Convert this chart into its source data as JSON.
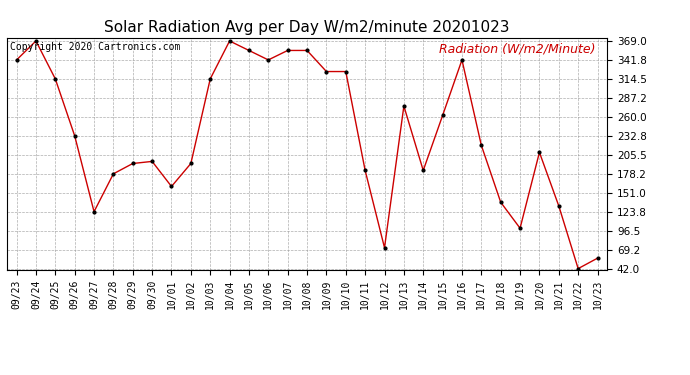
{
  "title": "Solar Radiation Avg per Day W/m2/minute 20201023",
  "copyright_text": "Copyright 2020 Cartronics.com",
  "y_label": "Radiation (W/m2/Minute)",
  "dates": [
    "09/23",
    "09/24",
    "09/25",
    "09/26",
    "09/27",
    "09/28",
    "09/29",
    "09/30",
    "10/01",
    "10/02",
    "10/03",
    "10/04",
    "10/05",
    "10/06",
    "10/07",
    "10/08",
    "10/09",
    "10/10",
    "10/11",
    "10/12",
    "10/13",
    "10/14",
    "10/15",
    "10/16",
    "10/17",
    "10/18",
    "10/19",
    "10/20",
    "10/21",
    "10/22",
    "10/23"
  ],
  "values": [
    341.8,
    369.0,
    314.5,
    232.8,
    123.8,
    178.2,
    193.0,
    196.0,
    160.0,
    193.0,
    314.5,
    369.0,
    355.4,
    341.8,
    355.4,
    355.4,
    325.1,
    325.1,
    183.0,
    72.0,
    275.5,
    183.0,
    262.0,
    341.8,
    219.1,
    137.4,
    100.0,
    209.0,
    132.0,
    42.0,
    57.0
  ],
  "ylim_min": 42.0,
  "ylim_max": 369.0,
  "yticks": [
    42.0,
    69.2,
    96.5,
    123.8,
    151.0,
    178.2,
    205.5,
    232.8,
    260.0,
    287.2,
    314.5,
    341.8,
    369.0
  ],
  "line_color": "#cc0000",
  "marker_color": "#000000",
  "bg_color": "#ffffff",
  "grid_color": "#999999",
  "title_fontsize": 11,
  "copyright_fontsize": 7,
  "ylabel_fontsize": 9,
  "tick_fontsize": 7,
  "ytick_fontsize": 7.5
}
